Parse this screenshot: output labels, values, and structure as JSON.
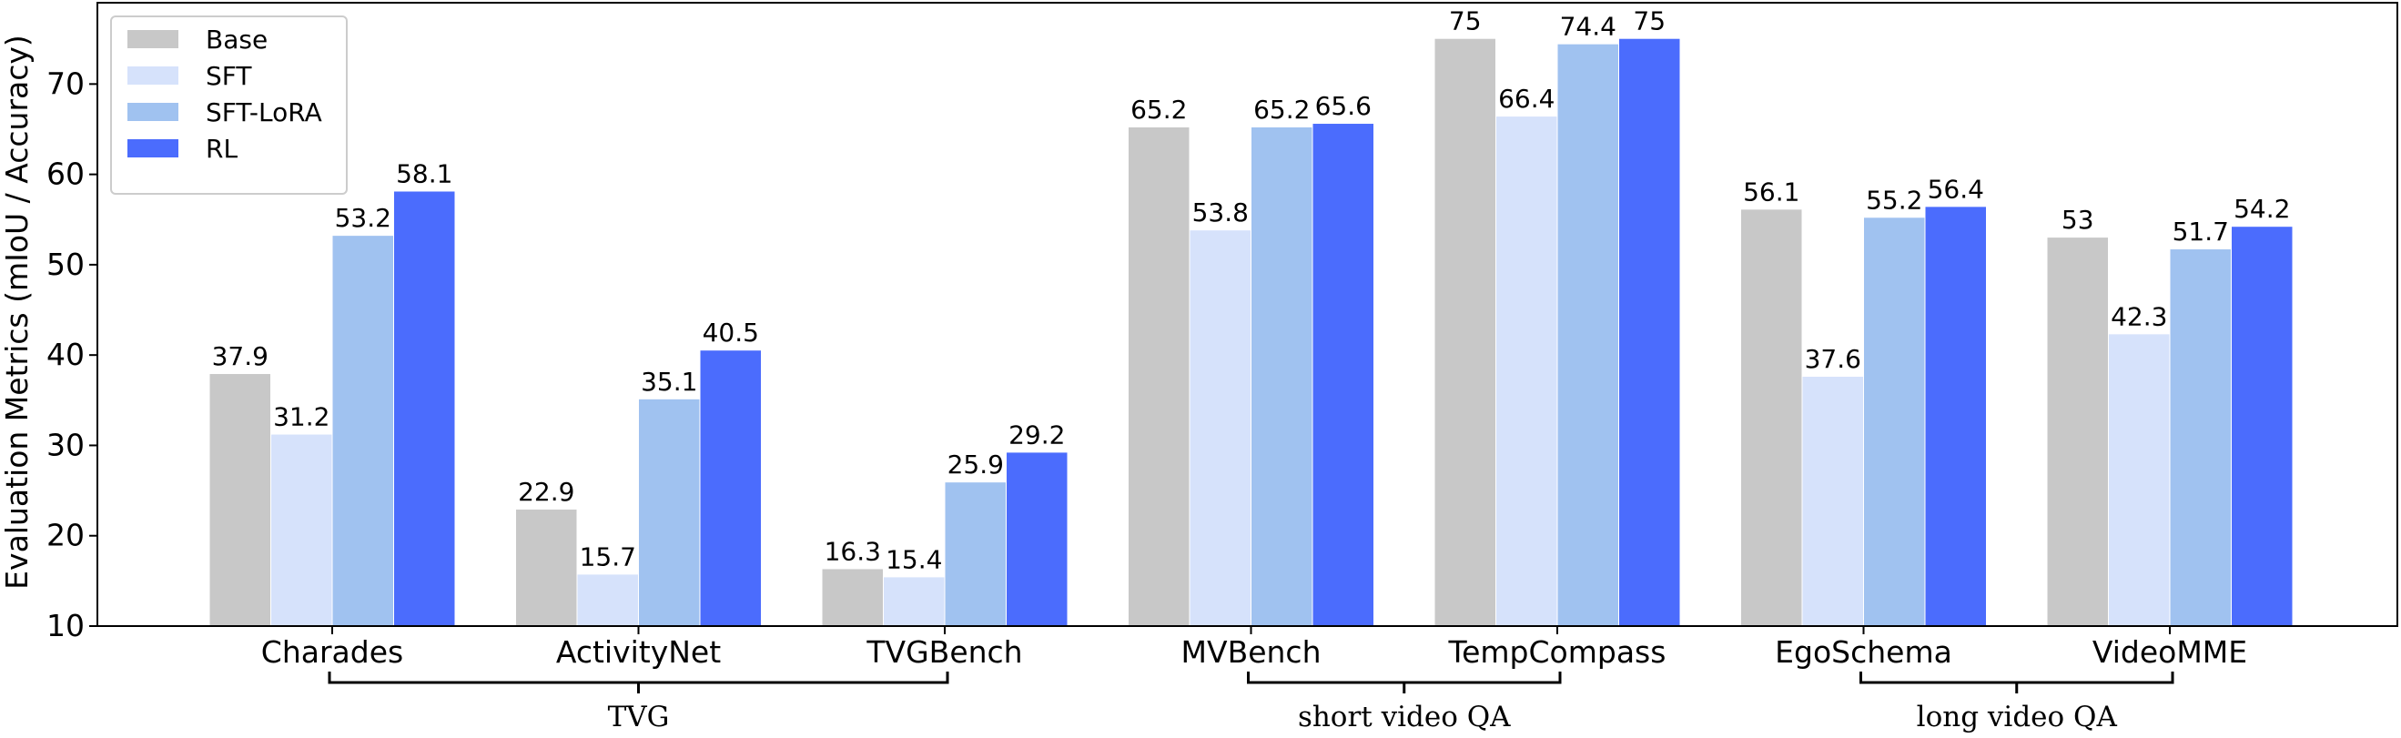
{
  "chart_data": {
    "type": "bar",
    "title": "",
    "xlabel": "",
    "ylabel": "Evaluation Metrics (mIoU / Accuracy)",
    "ylim": [
      10,
      79
    ],
    "yticks": [
      10,
      20,
      30,
      40,
      50,
      60,
      70
    ],
    "grid": false,
    "legend_position": "top-left",
    "categories": [
      "Charades",
      "ActivityNet",
      "TVGBench",
      "MVBench",
      "TempCompass",
      "EgoSchema",
      "VideoMME"
    ],
    "series": [
      {
        "name": "Base",
        "color": "#c8c8c8",
        "values": [
          37.9,
          22.9,
          16.3,
          65.2,
          75,
          56.1,
          53
        ]
      },
      {
        "name": "SFT",
        "color": "#d6e2fb",
        "values": [
          31.2,
          15.7,
          15.4,
          53.8,
          66.4,
          37.6,
          42.3
        ]
      },
      {
        "name": "SFT-LoRA",
        "color": "#a0c2f0",
        "values": [
          53.2,
          35.1,
          25.9,
          65.2,
          74.4,
          55.2,
          51.7
        ]
      },
      {
        "name": "RL",
        "color": "#4b6cfd",
        "values": [
          58.1,
          40.5,
          29.2,
          65.6,
          75,
          56.4,
          54.2
        ]
      }
    ],
    "groups": [
      {
        "label": "TVG",
        "from": 0,
        "to": 2
      },
      {
        "label": "short video QA",
        "from": 3,
        "to": 4
      },
      {
        "label": "long video QA",
        "from": 5,
        "to": 6
      }
    ]
  }
}
